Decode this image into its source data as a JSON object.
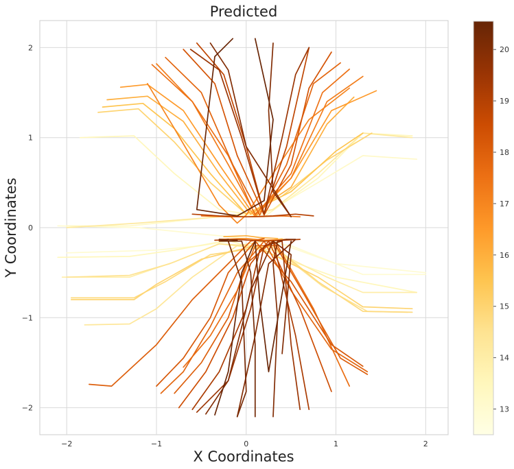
{
  "chart_data": {
    "type": "line",
    "title": "Predicted",
    "xlabel": "X Coordinates",
    "ylabel": "Y Coordinates",
    "xlim": [
      -2.3,
      2.25
    ],
    "ylim": [
      -2.3,
      2.3
    ],
    "xticks": [
      -2,
      -1,
      0,
      1,
      2
    ],
    "yticks": [
      -2,
      -1,
      0,
      1,
      2
    ],
    "xtick_labels": [
      "−2",
      "−1",
      "0",
      "1",
      "2"
    ],
    "ytick_labels": [
      "−2",
      "−1",
      "0",
      "1",
      "2"
    ],
    "grid": true,
    "colormap": "YlOrBr",
    "colorbar": {
      "range": [
        12.5,
        20.55
      ],
      "ticks": [
        13,
        14,
        15,
        16,
        17,
        18,
        19,
        20
      ],
      "tick_labels": [
        "13",
        "14",
        "15",
        "16",
        "17",
        "18",
        "19",
        "20"
      ],
      "colors": [
        "#ffffe5",
        "#fff7bc",
        "#fee391",
        "#fec44f",
        "#fe9929",
        "#ec7014",
        "#cc4c02",
        "#993404",
        "#662506"
      ]
    },
    "series": [
      {
        "value": 13.0,
        "x": [
          -2.1,
          -1.2,
          -0.7,
          -0.2,
          0.3,
          1.0,
          2.0
        ],
        "y": [
          0.02,
          0.0,
          -0.05,
          -0.1,
          -0.15,
          -0.4,
          -0.5
        ]
      },
      {
        "value": 13.0,
        "x": [
          -2.0,
          -1.0,
          -0.5,
          0.0,
          0.5,
          1.3,
          2.0
        ],
        "y": [
          -0.28,
          -0.25,
          -0.2,
          -0.12,
          -0.2,
          -0.52,
          -0.52
        ]
      },
      {
        "value": 13.2,
        "x": [
          1.9,
          1.3,
          0.8,
          0.2,
          -0.3,
          -1.3,
          -2.0
        ],
        "y": [
          0.76,
          0.8,
          0.5,
          0.15,
          0.12,
          0.02,
          0.02
        ]
      },
      {
        "value": 13.5,
        "x": [
          -2.1,
          -1.3,
          -0.8,
          -0.2,
          0.3,
          1.0,
          1.9
        ],
        "y": [
          -0.33,
          -0.32,
          -0.25,
          -0.14,
          -0.3,
          -0.55,
          -0.72
        ]
      },
      {
        "value": 13.5,
        "x": [
          -1.85,
          -1.25,
          -0.8,
          -0.3,
          0.2,
          0.8,
          1.3,
          1.85
        ],
        "y": [
          1.0,
          1.02,
          0.6,
          0.2,
          0.12,
          0.55,
          1.05,
          1.02
        ]
      },
      {
        "value": 14.0,
        "x": [
          -2.05,
          -1.3,
          -0.8,
          -0.3,
          0.3,
          0.9,
          1.3,
          1.9
        ],
        "y": [
          -0.55,
          -0.55,
          -0.38,
          -0.18,
          -0.25,
          -0.55,
          -0.72,
          -0.72
        ]
      },
      {
        "value": 14.2,
        "x": [
          1.85,
          1.3,
          0.8,
          0.3,
          -0.3,
          -1.2,
          -2.0
        ],
        "y": [
          1.0,
          1.05,
          0.6,
          0.2,
          0.12,
          0.05,
          0.0
        ]
      },
      {
        "value": 14.5,
        "x": [
          -2.0,
          -1.3,
          -0.85,
          -0.3,
          0.3,
          0.85,
          1.35,
          1.8
        ],
        "y": [
          -0.55,
          -0.53,
          -0.4,
          -0.18,
          -0.22,
          -0.65,
          -0.93,
          -0.94
        ]
      },
      {
        "value": 14.8,
        "x": [
          -1.95,
          -1.25,
          -0.9,
          -0.4,
          0.3,
          0.8,
          1.3,
          1.85
        ],
        "y": [
          -0.78,
          -0.78,
          -0.6,
          -0.3,
          -0.2,
          -0.6,
          -0.93,
          -0.94
        ]
      },
      {
        "value": 15.0,
        "x": [
          -1.95,
          -1.25,
          -1.0,
          -0.5,
          0.1,
          0.8,
          1.3,
          1.85
        ],
        "y": [
          -0.8,
          -0.8,
          -0.63,
          -0.35,
          -0.2,
          -0.55,
          -0.88,
          -0.9
        ]
      },
      {
        "value": 14.3,
        "x": [
          -1.8,
          -1.3,
          -1.0,
          -0.6,
          -0.1,
          0.4
        ],
        "y": [
          -1.08,
          -1.07,
          -0.9,
          -0.55,
          -0.2,
          -0.12
        ]
      },
      {
        "value": 15.0,
        "x": [
          -1.65,
          -1.2,
          -0.8,
          -0.4,
          0.0,
          0.4,
          0.9,
          1.4
        ],
        "y": [
          1.28,
          1.32,
          0.95,
          0.5,
          0.15,
          0.35,
          0.75,
          1.05
        ]
      },
      {
        "value": 15.5,
        "x": [
          -1.6,
          -1.15,
          -0.8,
          -0.4,
          0.0,
          0.5,
          1.0,
          1.3
        ],
        "y": [
          1.34,
          1.38,
          1.1,
          0.6,
          0.15,
          0.4,
          0.85,
          1.05
        ]
      },
      {
        "value": 16.0,
        "x": [
          -1.55,
          -1.1,
          -0.7,
          -0.3,
          0.05,
          0.5,
          0.9,
          1.2
        ],
        "y": [
          1.42,
          1.46,
          1.18,
          0.6,
          0.15,
          0.45,
          1.15,
          1.45
        ]
      },
      {
        "value": 16.5,
        "x": [
          -1.4,
          -1.1,
          -0.7,
          -0.3,
          0.1,
          0.5,
          0.95,
          1.45
        ],
        "y": [
          1.56,
          1.59,
          1.3,
          0.7,
          0.12,
          0.55,
          1.3,
          1.52
        ]
      },
      {
        "value": 17.0,
        "x": [
          1.15,
          0.7,
          0.3,
          0.0,
          -0.1,
          -0.3,
          -0.8,
          -1.1
        ],
        "y": [
          1.55,
          1.2,
          0.6,
          0.14,
          0.05,
          0.25,
          1.1,
          1.6
        ]
      },
      {
        "value": 17.2,
        "x": [
          -1.0,
          -0.6,
          -0.2,
          0.1,
          0.5,
          0.9,
          1.3
        ],
        "y": [
          1.82,
          1.4,
          0.7,
          0.15,
          0.55,
          1.4,
          1.68
        ]
      },
      {
        "value": 17.5,
        "x": [
          -1.05,
          -0.6,
          -0.2,
          0.1,
          0.5,
          0.85,
          1.15
        ],
        "y": [
          1.81,
          1.4,
          0.8,
          0.14,
          0.6,
          1.5,
          1.76
        ]
      },
      {
        "value": 17.8,
        "x": [
          -0.9,
          -0.5,
          -0.15,
          0.15,
          0.45,
          0.75,
          1.05
        ],
        "y": [
          1.89,
          1.5,
          0.7,
          0.14,
          0.7,
          1.6,
          1.83
        ]
      },
      {
        "value": 18.3,
        "x": [
          -0.7,
          -0.35,
          -0.1,
          0.2,
          0.5,
          0.7,
          0.95
        ],
        "y": [
          1.98,
          1.6,
          0.8,
          0.14,
          0.7,
          1.55,
          1.95
        ]
      },
      {
        "value": 18.8,
        "x": [
          -0.55,
          -0.25,
          0.0,
          0.2,
          0.45,
          0.7
        ],
        "y": [
          2.05,
          1.7,
          0.9,
          0.15,
          0.9,
          2.0
        ]
      },
      {
        "value": 19.5,
        "x": [
          -0.62,
          -0.3,
          -0.05,
          0.2,
          0.4,
          0.55,
          0.7
        ],
        "y": [
          1.98,
          1.75,
          1.0,
          0.15,
          1.0,
          1.7,
          2.0
        ]
      },
      {
        "value": 20.0,
        "x": [
          -0.4,
          -0.2,
          0.0,
          0.5,
          0.3,
          0.25,
          0.3
        ],
        "y": [
          2.05,
          1.75,
          0.9,
          0.12,
          0.4,
          1.3,
          2.05
        ]
      },
      {
        "value": 20.5,
        "x": [
          -0.15,
          -0.35,
          -0.55,
          -0.1,
          0.2,
          0.3,
          0.1
        ],
        "y": [
          2.1,
          1.9,
          0.2,
          0.13,
          0.3,
          1.2,
          2.1
        ]
      },
      {
        "value": 19.0,
        "x": [
          -0.6,
          -0.3,
          0.0,
          0.3,
          0.55,
          0.75
        ],
        "y": [
          0.15,
          0.13,
          0.12,
          0.13,
          0.15,
          0.13
        ]
      },
      {
        "value": 17.5,
        "x": [
          -0.5,
          -0.2,
          0.1,
          0.4,
          0.6
        ],
        "y": [
          0.13,
          0.12,
          0.12,
          0.13,
          0.12
        ]
      },
      {
        "value": 18.0,
        "x": [
          -1.75,
          -1.5,
          -1.0,
          -0.6,
          -0.2,
          0.05,
          0.2
        ],
        "y": [
          -1.74,
          -1.76,
          -1.3,
          -0.8,
          -0.4,
          -0.15,
          -0.12
        ]
      },
      {
        "value": 18.2,
        "x": [
          -1.0,
          -0.7,
          -0.4,
          -0.2,
          0.1,
          0.5,
          0.95,
          1.3
        ],
        "y": [
          -1.76,
          -1.45,
          -1.0,
          -0.5,
          -0.15,
          -0.6,
          -1.3,
          -1.54
        ]
      },
      {
        "value": 17.8,
        "x": [
          -0.95,
          -0.7,
          -0.4,
          -0.1,
          0.2,
          0.5,
          0.95,
          1.35
        ],
        "y": [
          -1.84,
          -1.6,
          -1.1,
          -0.5,
          -0.15,
          -0.7,
          -1.35,
          -1.6
        ]
      },
      {
        "value": 18.0,
        "x": [
          -0.8,
          -0.5,
          -0.2,
          0.0,
          0.3,
          0.65,
          1.05,
          1.35
        ],
        "y": [
          -1.84,
          -1.5,
          -1.0,
          -0.4,
          -0.15,
          -0.75,
          -1.45,
          -1.63
        ]
      },
      {
        "value": 17.6,
        "x": [
          -0.7,
          -0.4,
          -0.1,
          0.1,
          0.35,
          0.75,
          1.15
        ],
        "y": [
          -1.55,
          -1.2,
          -0.7,
          -0.2,
          -0.2,
          -0.9,
          -1.76
        ]
      },
      {
        "value": 18.5,
        "x": [
          -0.75,
          -0.45,
          -0.15,
          0.05,
          0.25,
          0.6,
          0.95
        ],
        "y": [
          -2.0,
          -1.6,
          -1.0,
          -0.4,
          -0.15,
          -0.9,
          -1.82
        ]
      },
      {
        "value": 19.2,
        "x": [
          -0.6,
          -0.3,
          0.0,
          0.15,
          0.3,
          0.55,
          0.7
        ],
        "y": [
          -2.02,
          -1.6,
          -0.9,
          -0.25,
          -0.15,
          -1.2,
          -2.02
        ]
      },
      {
        "value": 19.5,
        "x": [
          -0.55,
          -0.2,
          0.05,
          0.2,
          0.4,
          0.5,
          0.6
        ],
        "y": [
          -2.05,
          -1.7,
          -0.9,
          -0.2,
          -0.15,
          -1.3,
          -2.02
        ]
      },
      {
        "value": 20.0,
        "x": [
          -0.45,
          -0.2,
          0.05,
          0.3,
          0.5,
          0.4
        ],
        "y": [
          -2.07,
          -1.7,
          -0.7,
          -0.15,
          -0.3,
          -1.4
        ]
      },
      {
        "value": 20.5,
        "x": [
          -0.35,
          -0.2,
          -0.05,
          0.1,
          0.15,
          0.25,
          0.5
        ],
        "y": [
          -2.08,
          -1.6,
          -0.5,
          -0.15,
          -0.8,
          -1.6,
          -0.15
        ]
      },
      {
        "value": 20.2,
        "x": [
          -0.1,
          0.0,
          -0.05,
          -0.2,
          -0.3,
          -0.1
        ],
        "y": [
          -2.1,
          -1.82,
          -0.6,
          -0.15,
          -0.13,
          -0.14
        ]
      },
      {
        "value": 20.3,
        "x": [
          0.1,
          0.1,
          0.05,
          -0.05,
          -0.3,
          -0.2
        ],
        "y": [
          -2.1,
          -1.3,
          -0.5,
          -0.15,
          -0.15,
          -0.13
        ]
      },
      {
        "value": 20.0,
        "x": [
          0.3,
          0.35,
          0.3,
          0.35,
          0.45,
          0.55,
          0.25,
          0.1,
          -0.1
        ],
        "y": [
          -2.1,
          -1.0,
          -0.4,
          -0.15,
          -0.13,
          -0.13,
          -0.4,
          -1.2,
          -2.1
        ]
      },
      {
        "value": 19.0,
        "x": [
          -0.35,
          -0.1,
          0.2,
          0.4,
          0.6
        ],
        "y": [
          -0.14,
          -0.13,
          -0.15,
          -0.14,
          -0.13
        ]
      },
      {
        "value": 17.0,
        "x": [
          -0.3,
          0.0,
          0.2,
          0.45
        ],
        "y": [
          -0.13,
          -0.12,
          -0.14,
          -0.13
        ]
      },
      {
        "value": 16.0,
        "x": [
          -0.25,
          0.0,
          0.15,
          0.35
        ],
        "y": [
          -0.1,
          -0.09,
          -0.11,
          -0.12
        ]
      }
    ]
  }
}
